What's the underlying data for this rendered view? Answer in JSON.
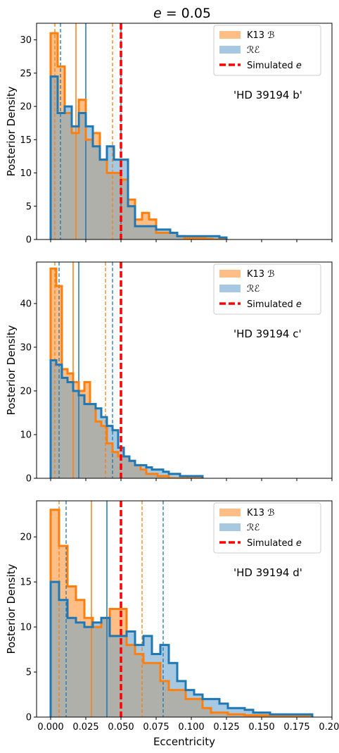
{
  "figure": {
    "title": "e = 0.05",
    "title_var": "e",
    "title_rest": " = 0.05",
    "xlabel": "Eccentricity",
    "colors": {
      "k13": "#ff7f0e",
      "k13_fill": "#ffbe86",
      "re": "#1f77b4",
      "re_fill": "#a6c8e0",
      "overlap": "#b0b0aa",
      "sim": "#ff0000"
    }
  },
  "legend": {
    "k13_label": "K13 ℬ",
    "re_label": "ℛℰ",
    "sim_label_prefix": "Simulated ",
    "sim_label_var": "e"
  },
  "chart_data": [
    {
      "type": "bar",
      "annotation": "'HD 39194 b'",
      "ylabel": "Posterior Density",
      "xlim": [
        -0.01,
        0.2
      ],
      "ylim": [
        0,
        32.5
      ],
      "yticks": [
        0,
        5,
        10,
        15,
        20,
        25,
        30
      ],
      "bin_edges": [
        0.0,
        0.005,
        0.01,
        0.015,
        0.02,
        0.025,
        0.03,
        0.035,
        0.04,
        0.045,
        0.05,
        0.055,
        0.06,
        0.065,
        0.07,
        0.075,
        0.08,
        0.085,
        0.09,
        0.095,
        0.1,
        0.105,
        0.11,
        0.115,
        0.12,
        0.125
      ],
      "series": [
        {
          "name": "K13 ℬ",
          "values": [
            31,
            26,
            19,
            16,
            21,
            15,
            16,
            12,
            10,
            10,
            9,
            6,
            3,
            4,
            3,
            1,
            1,
            1,
            0.5,
            0.2,
            0.2,
            0.2,
            0.1,
            0,
            0
          ],
          "median": 0.018,
          "interval": [
            0.003,
            0.044
          ]
        },
        {
          "name": "ℛℰ",
          "values": [
            24.5,
            19,
            20,
            17,
            19,
            17,
            14,
            12,
            14,
            12,
            12,
            5,
            2,
            2,
            2,
            1.5,
            1.5,
            1,
            0.5,
            0.5,
            0.5,
            0.5,
            0.5,
            0.5,
            0.3
          ],
          "median": 0.025,
          "interval": [
            0.007,
            0.05
          ]
        }
      ],
      "simulated_e": 0.05
    },
    {
      "type": "bar",
      "annotation": "'HD 39194 c'",
      "ylabel": "Posterior Density",
      "xlim": [
        -0.01,
        0.2
      ],
      "ylim": [
        0,
        49.5
      ],
      "yticks": [
        0,
        10,
        20,
        30,
        40
      ],
      "bin_edges": [
        0.0,
        0.004,
        0.008,
        0.012,
        0.016,
        0.02,
        0.024,
        0.028,
        0.032,
        0.036,
        0.04,
        0.044,
        0.048,
        0.052,
        0.056,
        0.06,
        0.064,
        0.068,
        0.072,
        0.076,
        0.08,
        0.084,
        0.088,
        0.092,
        0.096,
        0.1,
        0.104,
        0.108
      ],
      "series": [
        {
          "name": "K13 ℬ",
          "values": [
            48,
            44,
            25,
            24,
            22,
            20,
            22,
            17,
            13,
            12,
            8,
            6,
            5,
            5,
            4,
            3,
            2,
            1,
            1,
            0.5,
            0.5,
            0,
            0,
            0,
            0,
            0,
            0
          ],
          "median": 0.016,
          "interval": [
            0.003,
            0.039
          ]
        },
        {
          "name": "ℛℰ",
          "values": [
            27,
            26,
            23,
            22,
            20,
            19,
            17,
            17,
            16,
            14,
            12,
            11,
            7,
            5,
            4,
            3,
            3,
            2.5,
            2,
            2,
            1.5,
            1,
            1,
            0.5,
            0.5,
            0.5,
            0.5
          ],
          "median": 0.02,
          "interval": [
            0.006,
            0.044
          ]
        }
      ],
      "simulated_e": 0.05
    },
    {
      "type": "bar",
      "annotation": "'HD 39194 d'",
      "ylabel": "Posterior Density",
      "xlabel": "Eccentricity",
      "xlim": [
        -0.01,
        0.2
      ],
      "ylim": [
        0,
        24
      ],
      "yticks": [
        0,
        5,
        10,
        15,
        20
      ],
      "xticks": [
        0.0,
        0.025,
        0.05,
        0.075,
        0.1,
        0.125,
        0.15,
        0.175,
        0.2
      ],
      "xticklabels": [
        "0.000",
        "0.025",
        "0.050",
        "0.075",
        "0.100",
        "0.125",
        "0.150",
        "0.175",
        "0.200"
      ],
      "bin_edges": [
        0.0,
        0.006,
        0.012,
        0.018,
        0.024,
        0.03,
        0.036,
        0.042,
        0.048,
        0.054,
        0.06,
        0.066,
        0.072,
        0.078,
        0.084,
        0.09,
        0.096,
        0.102,
        0.108,
        0.114,
        0.12,
        0.126,
        0.132,
        0.138,
        0.144,
        0.15,
        0.156,
        0.162,
        0.168,
        0.174,
        0.18,
        0.186
      ],
      "series": [
        {
          "name": "K13 ℬ",
          "values": [
            23,
            19,
            14.5,
            13,
            11,
            10,
            11,
            12,
            12,
            8,
            7,
            6,
            6,
            4,
            3,
            3,
            2,
            2,
            1,
            0.5,
            0.5,
            0.3,
            0.3,
            0.2,
            0.2,
            0.2,
            0.2,
            0.2,
            0.2,
            0.2,
            0.2
          ],
          "median": 0.029,
          "interval": [
            0.006,
            0.065
          ]
        },
        {
          "name": "ℛℰ",
          "values": [
            15,
            13,
            11,
            10.5,
            10,
            10.5,
            11,
            9,
            9,
            9.5,
            8,
            9,
            7,
            8,
            6,
            4,
            3,
            2.5,
            2,
            2,
            1.5,
            1,
            1,
            0.8,
            0.5,
            0.5,
            0.3,
            0.3,
            0.3,
            0.3,
            0.3
          ],
          "median": 0.04,
          "interval": [
            0.011,
            0.08
          ]
        }
      ],
      "simulated_e": 0.05
    }
  ]
}
